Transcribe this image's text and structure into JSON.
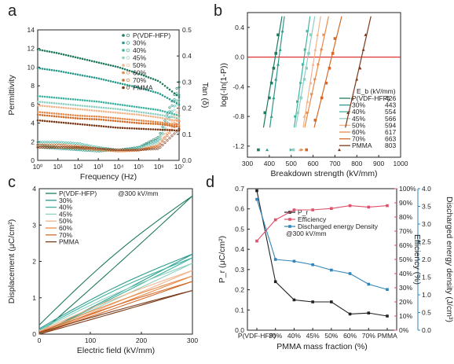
{
  "panel_labels": {
    "a": "a",
    "b": "b",
    "c": "c",
    "d": "d"
  },
  "chart_data": [
    {
      "id": "a",
      "type": "scatter",
      "xlabel": "Frequency (Hz)",
      "ylabel": "Permittivity",
      "y2label": "Tan (δ)",
      "xscale": "log",
      "xlim": [
        1,
        10000000
      ],
      "ylim": [
        0,
        14
      ],
      "y2lim": [
        0,
        0.5
      ],
      "xticks": [
        "10⁰",
        "10¹",
        "10²",
        "10³",
        "10⁴",
        "10⁵",
        "10⁶",
        "10⁷"
      ],
      "yticks": [
        "0",
        "2",
        "4",
        "6",
        "8",
        "10",
        "12",
        "14"
      ],
      "y2ticks": [
        "0.0",
        "0.1",
        "0.2",
        "0.3",
        "0.4",
        "0.5"
      ],
      "legend_position": "top-right",
      "series": [
        {
          "name": "P(VDF-HFP)",
          "color": "#1f7a5f",
          "eps": [
            11.9,
            11.5,
            11.0,
            10.5,
            10.0,
            9.3,
            8.5,
            6.8
          ],
          "tan": [
            0.06,
            0.05,
            0.045,
            0.04,
            0.04,
            0.05,
            0.09,
            0.3
          ]
        },
        {
          "name": "30%",
          "color": "#2a9a8c",
          "eps": [
            9.9,
            9.6,
            9.2,
            8.8,
            8.3,
            7.8,
            7.2,
            6.0
          ],
          "tan": [
            0.05,
            0.045,
            0.04,
            0.035,
            0.04,
            0.05,
            0.08,
            0.28
          ]
        },
        {
          "name": "40%",
          "color": "#3fb3a0",
          "eps": [
            6.9,
            6.7,
            6.5,
            6.3,
            6.0,
            5.7,
            5.4,
            4.8
          ],
          "tan": [
            0.07,
            0.07,
            0.065,
            0.05,
            0.04,
            0.045,
            0.07,
            0.25
          ]
        },
        {
          "name": "45%",
          "color": "#8fd0c2",
          "eps": [
            6.3,
            6.1,
            5.9,
            5.7,
            5.5,
            5.2,
            4.9,
            4.5
          ],
          "tan": [
            0.06,
            0.06,
            0.055,
            0.045,
            0.04,
            0.045,
            0.07,
            0.23
          ]
        },
        {
          "name": "50%",
          "color": "#f2b48a",
          "eps": [
            5.9,
            5.7,
            5.5,
            5.3,
            5.1,
            4.9,
            4.6,
            4.2
          ],
          "tan": [
            0.05,
            0.05,
            0.048,
            0.04,
            0.036,
            0.04,
            0.06,
            0.2
          ]
        },
        {
          "name": "60%",
          "color": "#e88a4a",
          "eps": [
            5.2,
            5.0,
            4.8,
            4.7,
            4.5,
            4.3,
            4.1,
            3.8
          ],
          "tan": [
            0.05,
            0.05,
            0.047,
            0.04,
            0.035,
            0.038,
            0.055,
            0.17
          ]
        },
        {
          "name": "70%",
          "color": "#d46a2a",
          "eps": [
            4.9,
            4.7,
            4.5,
            4.4,
            4.2,
            4.0,
            3.9,
            3.6
          ],
          "tan": [
            0.06,
            0.06,
            0.055,
            0.045,
            0.04,
            0.04,
            0.055,
            0.15
          ]
        },
        {
          "name": "PMMA",
          "color": "#7a3a1a",
          "eps": [
            4.3,
            4.1,
            3.9,
            3.7,
            3.5,
            3.4,
            3.3,
            3.2
          ],
          "tan": [
            0.05,
            0.05,
            0.05,
            0.045,
            0.04,
            0.04,
            0.045,
            0.12
          ]
        }
      ]
    },
    {
      "id": "b",
      "type": "scatter",
      "xlabel": "Breakdown strength (kV/mm)",
      "ylabel": "log(-ln(1-P))",
      "xlim": [
        300,
        1000
      ],
      "ylim": [
        -1.35,
        0.6
      ],
      "xticks": [
        "300",
        "400",
        "500",
        "600",
        "700",
        "800",
        "900",
        "1000"
      ],
      "yticks": [
        "-1.2",
        "-0.8",
        "-0.4",
        "0.0",
        "0.4"
      ],
      "legend_header": "E_b (kV/mm)",
      "legend_position": "bottom-right",
      "series": [
        {
          "name": "P(VDF-HFP)",
          "eb": "426",
          "color": "#1f7a5f",
          "x": [
            350,
            380,
            400,
            410,
            420,
            430,
            440
          ],
          "y": [
            -1.25,
            -0.75,
            -0.55,
            -0.35,
            -0.15,
            0.05,
            0.3
          ]
        },
        {
          "name": "30%",
          "eb": "443",
          "color": "#2a9a8c",
          "x": [
            390,
            410,
            420,
            430,
            440,
            450,
            460
          ],
          "y": [
            -1.25,
            -0.8,
            -0.55,
            -0.3,
            -0.1,
            0.1,
            0.35
          ]
        },
        {
          "name": "40%",
          "eb": "554",
          "color": "#3fb3a0",
          "x": [
            500,
            520,
            530,
            545,
            555,
            565,
            575
          ],
          "y": [
            -1.25,
            -0.8,
            -0.6,
            -0.35,
            -0.1,
            0.1,
            0.35
          ]
        },
        {
          "name": "45%",
          "eb": "566",
          "color": "#8fd0c2",
          "x": [
            510,
            530,
            545,
            560,
            570,
            580,
            590
          ],
          "y": [
            -1.25,
            -0.75,
            -0.55,
            -0.3,
            -0.15,
            0.05,
            0.3
          ]
        },
        {
          "name": "50%",
          "eb": "594",
          "color": "#f2b48a",
          "x": [
            540,
            560,
            575,
            590,
            600,
            610,
            620
          ],
          "y": [
            -1.25,
            -0.8,
            -0.6,
            -0.35,
            -0.1,
            0.1,
            0.3
          ]
        },
        {
          "name": "60%",
          "eb": "617",
          "color": "#e88a4a",
          "x": [
            550,
            575,
            595,
            610,
            625,
            640,
            650
          ],
          "y": [
            -1.25,
            -0.75,
            -0.5,
            -0.3,
            -0.1,
            0.1,
            0.3
          ]
        },
        {
          "name": "70%",
          "eb": "663",
          "color": "#d46a2a",
          "x": [
            570,
            610,
            640,
            660,
            675,
            690,
            700
          ],
          "y": [
            -1.25,
            -0.85,
            -0.55,
            -0.35,
            -0.15,
            0.05,
            0.25
          ]
        },
        {
          "name": "PMMA",
          "eb": "803",
          "color": "#7a3a1a",
          "x": [
            720,
            760,
            780,
            800,
            815,
            830,
            840
          ],
          "y": [
            -1.25,
            -0.75,
            -0.55,
            -0.3,
            -0.15,
            0.1,
            0.3
          ]
        }
      ]
    },
    {
      "id": "c",
      "type": "line",
      "xlabel": "Electric field (kV/mm)",
      "ylabel": "Displacement (μC/cm²)",
      "xlim": [
        0,
        300
      ],
      "ylim": [
        0,
        4
      ],
      "xticks": [
        "0",
        "100",
        "200",
        "300"
      ],
      "yticks": [
        "0",
        "1",
        "2",
        "3",
        "4"
      ],
      "annotation": "@300 kV/mm",
      "legend_position": "top-left",
      "series": [
        {
          "name": "P(VDF-HFP)",
          "color": "#1f7a5f",
          "dmax": 3.8,
          "dr": 0.25,
          "width": 0.55
        },
        {
          "name": "30%",
          "color": "#2a9a8c",
          "dmax": 2.2,
          "dr": 0.15,
          "width": 0.35
        },
        {
          "name": "40%",
          "color": "#3fb3a0",
          "dmax": 2.1,
          "dr": 0.12,
          "width": 0.3
        },
        {
          "name": "45%",
          "color": "#8fd0c2",
          "dmax": 1.95,
          "dr": 0.1,
          "width": 0.25
        },
        {
          "name": "50%",
          "color": "#f2b48a",
          "dmax": 1.75,
          "dr": 0.08,
          "width": 0.2
        },
        {
          "name": "60%",
          "color": "#e88a4a",
          "dmax": 1.6,
          "dr": 0.06,
          "width": 0.15
        },
        {
          "name": "70%",
          "color": "#d46a2a",
          "dmax": 1.45,
          "dr": 0.05,
          "width": 0.12
        },
        {
          "name": "PMMA",
          "color": "#7a3a1a",
          "dmax": 1.2,
          "dr": 0.04,
          "width": 0.08
        }
      ]
    },
    {
      "id": "d",
      "type": "line",
      "xlabel": "PMMA mass fraction (%)",
      "ylabel": "P_r (μC/cm²)",
      "y2label": "Efficiency (%)",
      "y3label": "Discharged energy density (J/cm³)",
      "categories": [
        "P(VDF-HFP)",
        "30%",
        "40%",
        "45%",
        "50%",
        "60%",
        "70%",
        "PMMA"
      ],
      "ylim": [
        0,
        0.7
      ],
      "y2lim": [
        0,
        100
      ],
      "y3lim": [
        0,
        4.0
      ],
      "yticks": [
        "0.0",
        "0.1",
        "0.2",
        "0.3",
        "0.4",
        "0.5",
        "0.6",
        "0.7"
      ],
      "y2ticks": [
        "0%",
        "10%",
        "20%",
        "30%",
        "40%",
        "50%",
        "60%",
        "70%",
        "80%",
        "90%",
        "100%"
      ],
      "y3ticks": [
        "0.0",
        "0.5",
        "1.0",
        "1.5",
        "2.0",
        "2.5",
        "3.0",
        "3.5",
        "4.0"
      ],
      "annotation": "@300 kV/mm",
      "legend_position": "top-right",
      "series": [
        {
          "name": "P_r",
          "color": "#222222",
          "axis": "left",
          "values": [
            0.69,
            0.24,
            0.15,
            0.14,
            0.14,
            0.08,
            0.085,
            0.07
          ]
        },
        {
          "name": "Efficiency",
          "color": "#e0506a",
          "axis": "right1",
          "values": [
            63,
            78,
            85,
            85,
            86,
            88,
            87,
            88
          ]
        },
        {
          "name": "Discharged energy Density",
          "color": "#2f86b8",
          "axis": "right2",
          "values": [
            3.7,
            2.0,
            1.95,
            1.85,
            1.7,
            1.6,
            1.3,
            1.15
          ]
        }
      ]
    }
  ]
}
